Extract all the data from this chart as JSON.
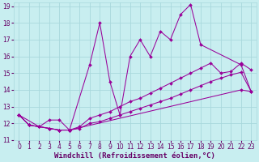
{
  "xlabel": "Windchill (Refroidissement éolien,°C)",
  "ylabel": "",
  "bg_color": "#c8eef0",
  "grid_color": "#a8d8dc",
  "line_color": "#990099",
  "xlim": [
    -0.5,
    23.5
  ],
  "ylim": [
    11,
    19.2
  ],
  "xticks": [
    0,
    1,
    2,
    3,
    4,
    5,
    6,
    7,
    8,
    9,
    10,
    11,
    12,
    13,
    14,
    15,
    16,
    17,
    18,
    19,
    20,
    21,
    22,
    23
  ],
  "yticks": [
    11,
    12,
    13,
    14,
    15,
    16,
    17,
    18,
    19
  ],
  "lines": [
    {
      "x": [
        0,
        1,
        2,
        3,
        4,
        5,
        22,
        23
      ],
      "y": [
        12.5,
        11.9,
        11.8,
        11.7,
        11.6,
        11.6,
        14.0,
        13.9
      ]
    },
    {
      "x": [
        0,
        1,
        2,
        3,
        4,
        5,
        6,
        7,
        8,
        9,
        10,
        11,
        12,
        13,
        14,
        15,
        16,
        17,
        18,
        19,
        20,
        21,
        22,
        23
      ],
      "y": [
        12.5,
        11.9,
        11.8,
        11.7,
        11.6,
        11.6,
        11.7,
        12.0,
        12.1,
        12.3,
        12.5,
        12.7,
        12.9,
        13.1,
        13.3,
        13.5,
        13.75,
        14.0,
        14.25,
        14.5,
        14.7,
        14.9,
        15.05,
        13.9
      ]
    },
    {
      "x": [
        0,
        1,
        2,
        3,
        4,
        5,
        6,
        7,
        8,
        9,
        10,
        11,
        12,
        13,
        14,
        15,
        16,
        17,
        18,
        19,
        20,
        21,
        22,
        23
      ],
      "y": [
        12.5,
        11.9,
        11.8,
        11.7,
        11.6,
        11.6,
        11.8,
        12.3,
        12.5,
        12.7,
        13.0,
        13.3,
        13.5,
        13.8,
        14.1,
        14.4,
        14.7,
        15.0,
        15.3,
        15.6,
        15.0,
        15.1,
        15.6,
        15.2
      ]
    },
    {
      "x": [
        0,
        2,
        3,
        4,
        5,
        7,
        8,
        9,
        10,
        11,
        12,
        13,
        14,
        15,
        16,
        17,
        18,
        22,
        23
      ],
      "y": [
        12.5,
        11.8,
        12.2,
        12.2,
        11.6,
        15.5,
        18.0,
        14.5,
        12.5,
        16.0,
        17.0,
        16.0,
        17.5,
        17.0,
        18.5,
        19.1,
        16.7,
        15.5,
        13.9
      ]
    }
  ],
  "tick_fontsize": 5.5,
  "label_fontsize": 6.5
}
